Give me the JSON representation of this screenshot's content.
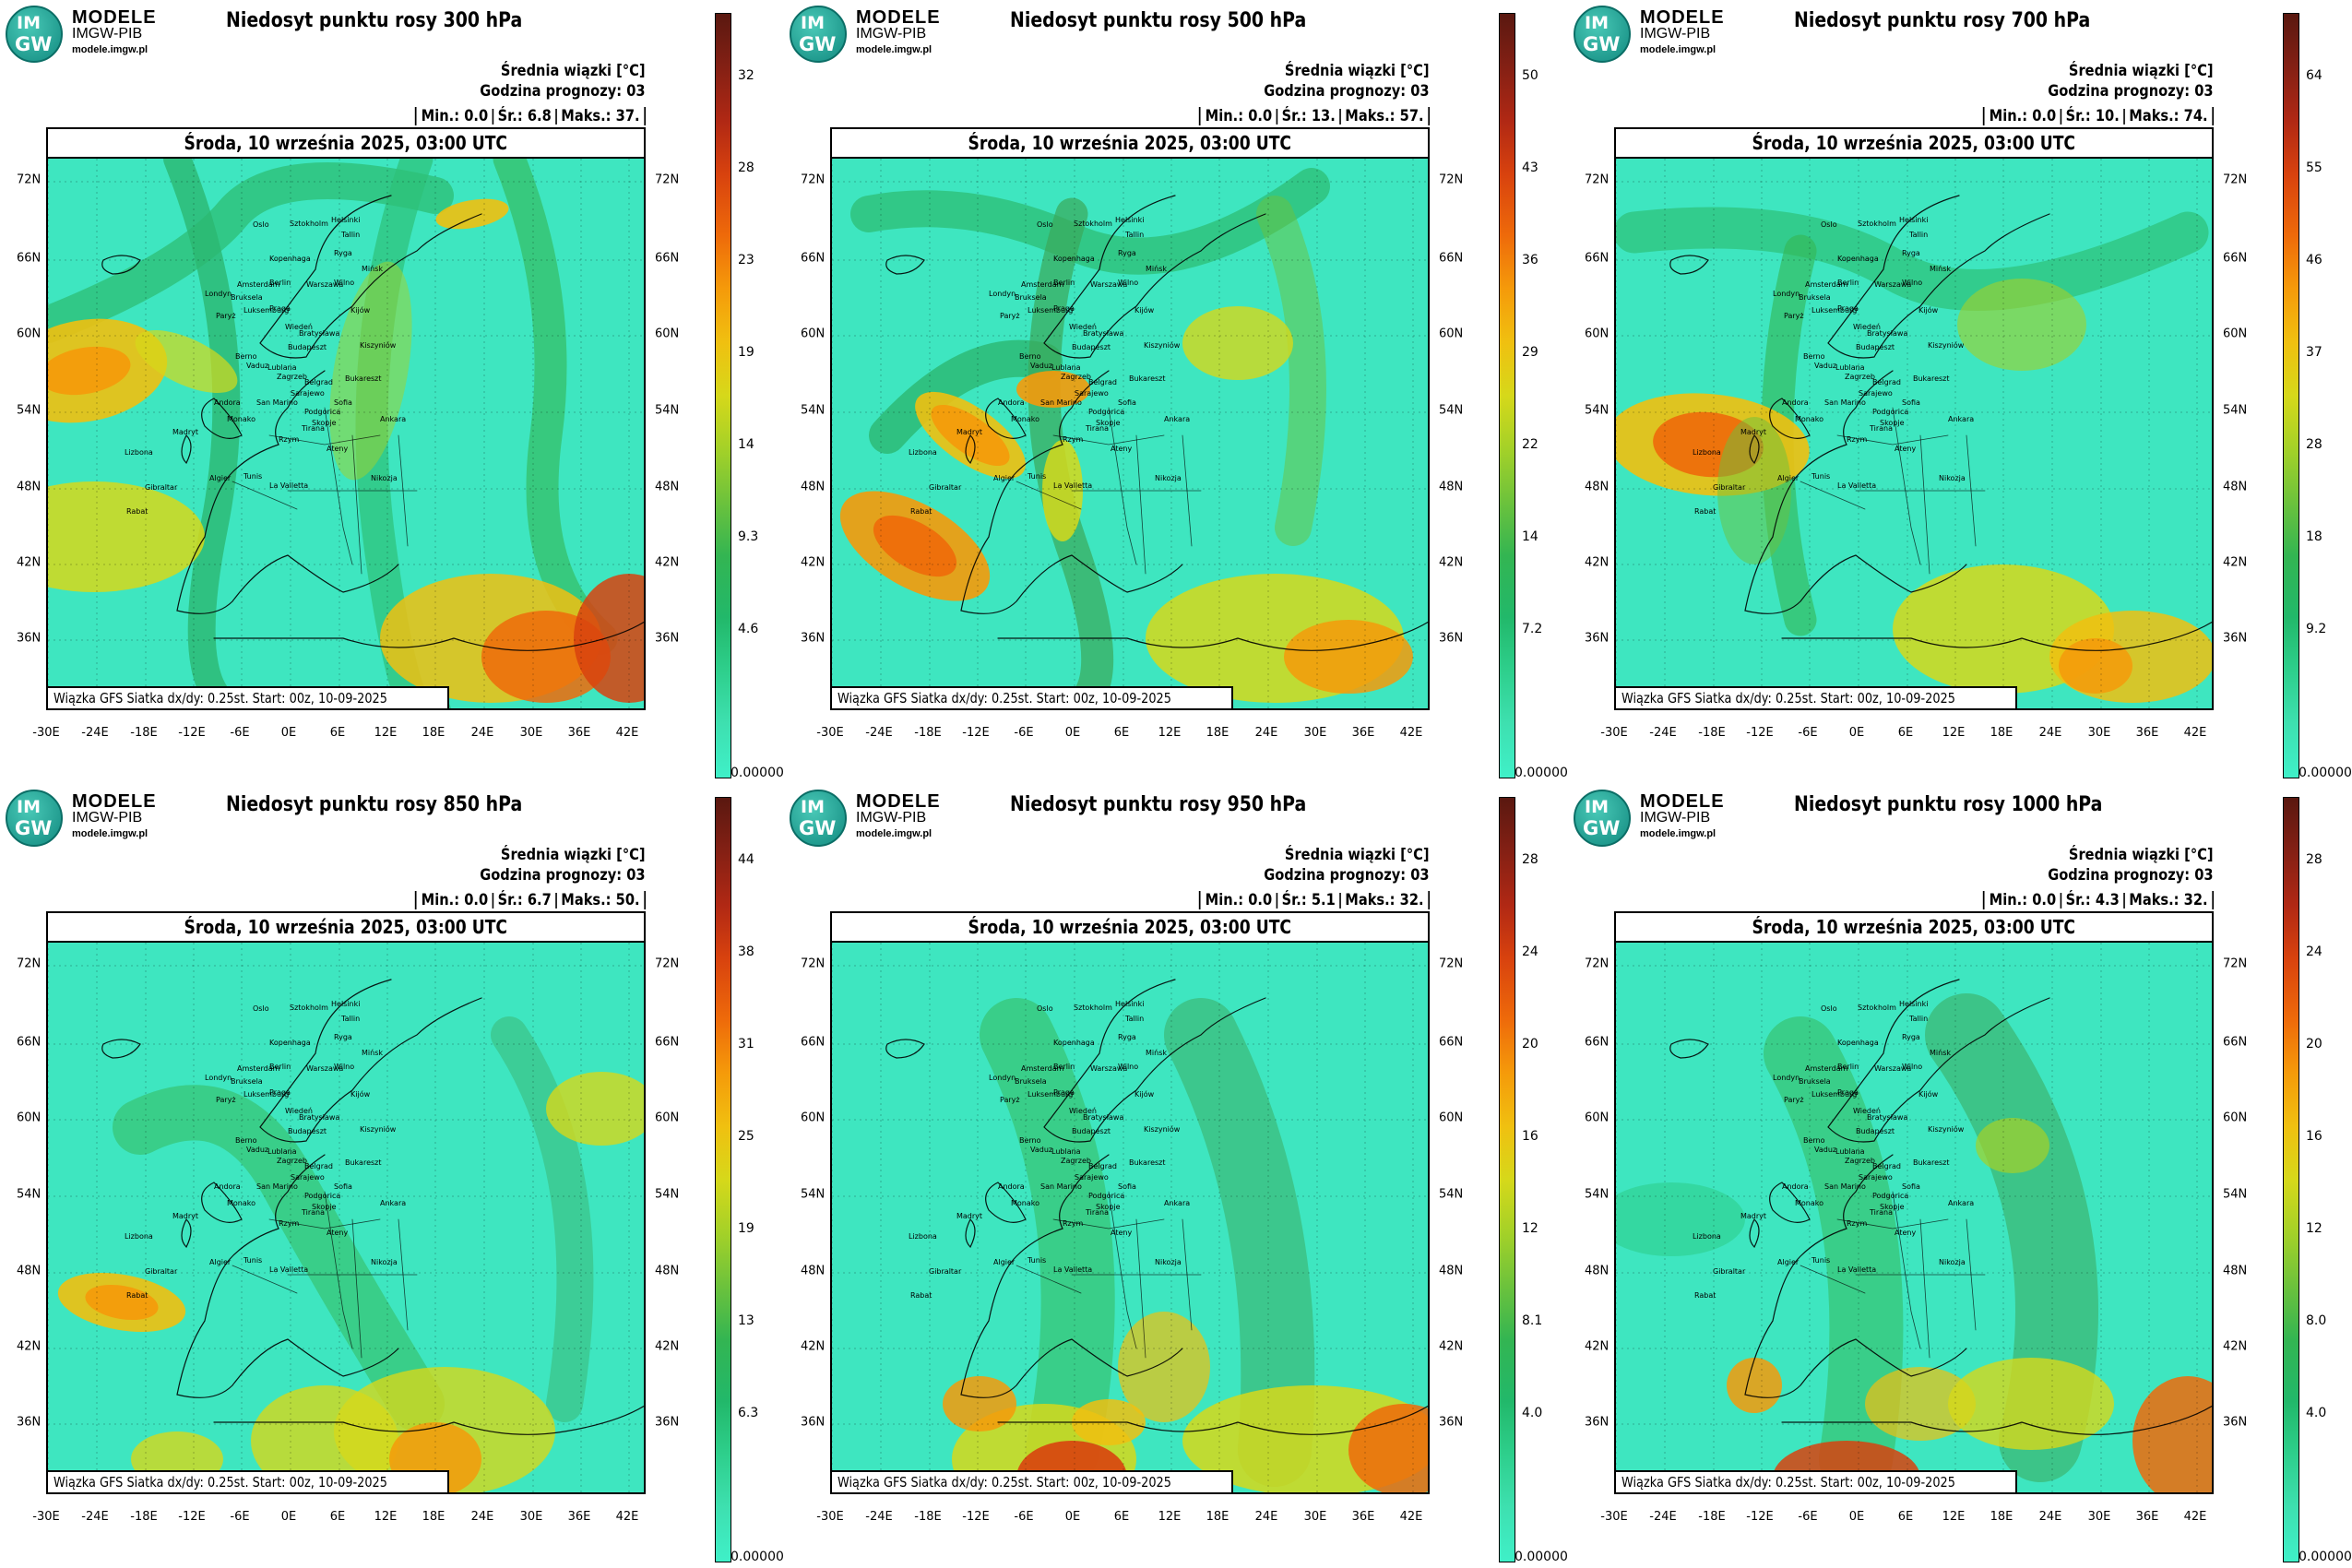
{
  "logo": {
    "im": "IM",
    "gw": "GW",
    "line1": "MODELE",
    "line2": "IMGW-PIB",
    "line3": "modele.imgw.pl"
  },
  "common": {
    "info_l1": "Średnia wiązki [°C]",
    "info_l2": "Godzina prognozy: 03",
    "min_label": "Min.:",
    "avg_label": "Śr.:",
    "max_label": "Maks.:",
    "date": "Środa, 10 września 2025, 03:00 UTC",
    "footer": "Wiązka GFS Siatka dx/dy: 0.25st. Start: 00z, 10-09-2025",
    "lat_labels": [
      "72N",
      "66N",
      "60N",
      "54N",
      "48N",
      "42N",
      "36N"
    ],
    "lon_labels": [
      "-30E",
      "-24E",
      "-18E",
      "-12E",
      "-6E",
      "0E",
      "6E",
      "12E",
      "18E",
      "24E",
      "30E",
      "36E",
      "42E"
    ],
    "zero_label": "0.00000",
    "cities": [
      "Oslo",
      "Sztokholm",
      "Helsinki",
      "Tallin",
      "Ryga",
      "Kopenhaga",
      "Wilno",
      "Mińsk",
      "Amsterdam",
      "Berlin",
      "Warszawa",
      "Londyn",
      "Bruksela",
      "Luksemburg",
      "Paryż",
      "Praga",
      "Wiedeń",
      "Kijów",
      "Bratysława",
      "Budapeszt",
      "Kiszyniów",
      "Berno",
      "Vaduz",
      "Lublana",
      "Zagrzeb",
      "Belgrad",
      "Bukareszt",
      "Sarajewo",
      "Andora",
      "San Marino",
      "Podgorica",
      "Sofia",
      "Monako",
      "Skopje",
      "Rzym",
      "Tirana",
      "Ankara",
      "Madryt",
      "Lizbona",
      "Ateny",
      "Algier",
      "Tunis",
      "Gibraltar",
      "La Valletta",
      "Rabat",
      "Nikozja"
    ],
    "colors": [
      "#3ff0c8",
      "#3ee0b0",
      "#2ecf8c",
      "#22b86a",
      "#33b552",
      "#6cc23c",
      "#a4d128",
      "#d6d81a",
      "#f0c010",
      "#f59a0a",
      "#ee6a0a",
      "#d8420e",
      "#b02814",
      "#842014",
      "#5a1810"
    ]
  },
  "panels": [
    {
      "title": "Niedosyt punktu rosy 300 hPa",
      "min": "0.0",
      "avg": "6.8",
      "max": "37.",
      "ticks": [
        "32",
        "28",
        "23",
        "19",
        "14",
        "9.3",
        "4.6"
      ],
      "pattern": "upper"
    },
    {
      "title": "Niedosyt punktu rosy 500 hPa",
      "min": "0.0",
      "avg": "13.",
      "max": "57.",
      "ticks": [
        "50",
        "43",
        "36",
        "29",
        "22",
        "14",
        "7.2"
      ],
      "pattern": "mid"
    },
    {
      "title": "Niedosyt punktu rosy 700 hPa",
      "min": "0.0",
      "avg": "10.",
      "max": "74.",
      "ticks": [
        "64",
        "55",
        "46",
        "37",
        "28",
        "18",
        "9.2"
      ],
      "pattern": "lowmid"
    },
    {
      "title": "Niedosyt punktu rosy 850 hPa",
      "min": "0.0",
      "avg": "6.7",
      "max": "50.",
      "ticks": [
        "44",
        "38",
        "31",
        "25",
        "19",
        "13",
        "6.3"
      ],
      "pattern": "low"
    },
    {
      "title": "Niedosyt punktu rosy 950 hPa",
      "min": "0.0",
      "avg": "5.1",
      "max": "32.",
      "ticks": [
        "28",
        "24",
        "20",
        "16",
        "12",
        "8.1",
        "4.0"
      ],
      "pattern": "surface"
    },
    {
      "title": "Niedosyt punktu rosy 1000 hPa",
      "min": "0.0",
      "avg": "4.3",
      "max": "32.",
      "ticks": [
        "28",
        "24",
        "20",
        "16",
        "12",
        "8.0",
        "4.0"
      ],
      "pattern": "surface2"
    }
  ]
}
